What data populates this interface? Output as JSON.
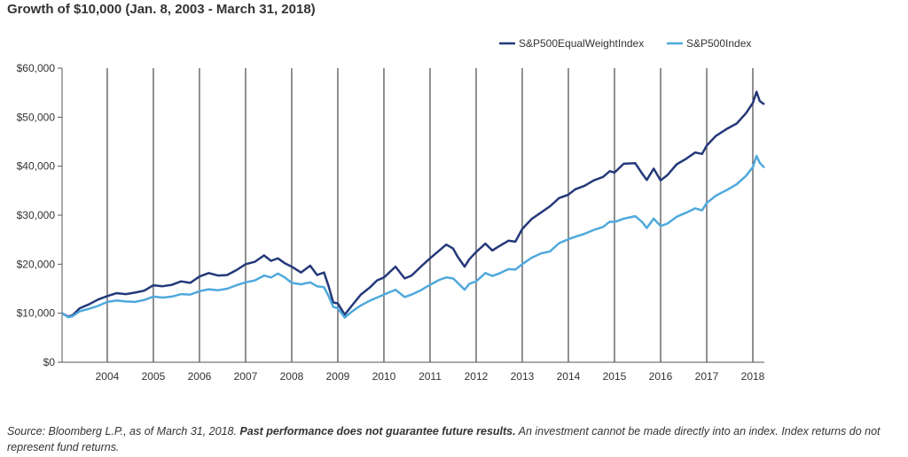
{
  "title": "Growth of $10,000 (Jan. 8, 2003 - March 31, 2018)",
  "footnote": {
    "part1": "Source: Bloomberg L.P., as of March 31, 2018. ",
    "bold": "Past performance does not guarantee future results.",
    "part2": " An investment cannot be made directly into an index. Index returns do not represent fund returns."
  },
  "chart_data": {
    "type": "line",
    "title": "Growth of $10,000 (Jan. 8, 2003 - March 31, 2018)",
    "xlabel": "",
    "ylabel": "",
    "xlim": [
      2003.02,
      2018.25
    ],
    "ylim": [
      0,
      60000
    ],
    "x_ticks": [
      2004,
      2005,
      2006,
      2007,
      2008,
      2009,
      2010,
      2011,
      2012,
      2013,
      2014,
      2015,
      2016,
      2017,
      2018
    ],
    "x_tick_labels": [
      "2004",
      "2005",
      "2006",
      "2007",
      "2008",
      "2009",
      "2010",
      "2011",
      "2012",
      "2013",
      "2014",
      "2015",
      "2016",
      "2017",
      "2018"
    ],
    "y_ticks": [
      0,
      10000,
      20000,
      30000,
      40000,
      50000,
      60000
    ],
    "y_tick_labels": [
      "$0",
      "$10,000",
      "$20,000",
      "$30,000",
      "$40,000",
      "$50,000",
      "$60,000"
    ],
    "vertical_grid": true,
    "legend_position": "top-right",
    "series": [
      {
        "name": "S&P500EqualWeightIndex",
        "color": "#24397a",
        "points": [
          [
            2003.02,
            10000
          ],
          [
            2003.15,
            9300
          ],
          [
            2003.25,
            9600
          ],
          [
            2003.4,
            11000
          ],
          [
            2003.6,
            11800
          ],
          [
            2003.8,
            12800
          ],
          [
            2004.0,
            13500
          ],
          [
            2004.2,
            14100
          ],
          [
            2004.4,
            13900
          ],
          [
            2004.6,
            14200
          ],
          [
            2004.8,
            14600
          ],
          [
            2005.0,
            15700
          ],
          [
            2005.2,
            15500
          ],
          [
            2005.4,
            15800
          ],
          [
            2005.6,
            16500
          ],
          [
            2005.8,
            16200
          ],
          [
            2006.0,
            17500
          ],
          [
            2006.2,
            18200
          ],
          [
            2006.4,
            17700
          ],
          [
            2006.6,
            17800
          ],
          [
            2006.8,
            18800
          ],
          [
            2007.0,
            20000
          ],
          [
            2007.2,
            20500
          ],
          [
            2007.4,
            21800
          ],
          [
            2007.55,
            20700
          ],
          [
            2007.7,
            21200
          ],
          [
            2007.85,
            20200
          ],
          [
            2008.0,
            19500
          ],
          [
            2008.2,
            18300
          ],
          [
            2008.4,
            19700
          ],
          [
            2008.55,
            17800
          ],
          [
            2008.7,
            18300
          ],
          [
            2008.8,
            15500
          ],
          [
            2008.9,
            12200
          ],
          [
            2009.0,
            12000
          ],
          [
            2009.15,
            9700
          ],
          [
            2009.3,
            11500
          ],
          [
            2009.5,
            13800
          ],
          [
            2009.7,
            15300
          ],
          [
            2009.85,
            16700
          ],
          [
            2010.0,
            17300
          ],
          [
            2010.25,
            19500
          ],
          [
            2010.45,
            17100
          ],
          [
            2010.6,
            17700
          ],
          [
            2010.8,
            19500
          ],
          [
            2011.0,
            21200
          ],
          [
            2011.2,
            22800
          ],
          [
            2011.35,
            24000
          ],
          [
            2011.5,
            23200
          ],
          [
            2011.6,
            21500
          ],
          [
            2011.75,
            19500
          ],
          [
            2011.85,
            21000
          ],
          [
            2012.0,
            22500
          ],
          [
            2012.2,
            24200
          ],
          [
            2012.35,
            22800
          ],
          [
            2012.5,
            23700
          ],
          [
            2012.7,
            24800
          ],
          [
            2012.85,
            24600
          ],
          [
            2013.0,
            27200
          ],
          [
            2013.2,
            29200
          ],
          [
            2013.4,
            30500
          ],
          [
            2013.6,
            31800
          ],
          [
            2013.8,
            33500
          ],
          [
            2014.0,
            34200
          ],
          [
            2014.15,
            35300
          ],
          [
            2014.35,
            36000
          ],
          [
            2014.55,
            37100
          ],
          [
            2014.75,
            37800
          ],
          [
            2014.9,
            39000
          ],
          [
            2015.0,
            38700
          ],
          [
            2015.2,
            40500
          ],
          [
            2015.45,
            40600
          ],
          [
            2015.6,
            38500
          ],
          [
            2015.7,
            37200
          ],
          [
            2015.85,
            39500
          ],
          [
            2016.0,
            37100
          ],
          [
            2016.15,
            38200
          ],
          [
            2016.35,
            40400
          ],
          [
            2016.55,
            41500
          ],
          [
            2016.75,
            42800
          ],
          [
            2016.9,
            42500
          ],
          [
            2017.0,
            44200
          ],
          [
            2017.2,
            46200
          ],
          [
            2017.45,
            47700
          ],
          [
            2017.65,
            48700
          ],
          [
            2017.85,
            50800
          ],
          [
            2018.0,
            52900
          ],
          [
            2018.08,
            55200
          ],
          [
            2018.15,
            53300
          ],
          [
            2018.25,
            52600
          ]
        ]
      },
      {
        "name": "S&P500Index",
        "color": "#4fa9dc",
        "points": [
          [
            2003.02,
            10000
          ],
          [
            2003.15,
            9200
          ],
          [
            2003.25,
            9400
          ],
          [
            2003.4,
            10400
          ],
          [
            2003.6,
            10900
          ],
          [
            2003.8,
            11500
          ],
          [
            2004.0,
            12300
          ],
          [
            2004.2,
            12600
          ],
          [
            2004.4,
            12400
          ],
          [
            2004.6,
            12300
          ],
          [
            2004.8,
            12700
          ],
          [
            2005.0,
            13400
          ],
          [
            2005.2,
            13200
          ],
          [
            2005.4,
            13400
          ],
          [
            2005.6,
            13900
          ],
          [
            2005.8,
            13800
          ],
          [
            2006.0,
            14500
          ],
          [
            2006.2,
            14900
          ],
          [
            2006.4,
            14700
          ],
          [
            2006.6,
            15000
          ],
          [
            2006.8,
            15700
          ],
          [
            2007.0,
            16300
          ],
          [
            2007.2,
            16700
          ],
          [
            2007.4,
            17700
          ],
          [
            2007.55,
            17300
          ],
          [
            2007.7,
            18100
          ],
          [
            2007.85,
            17300
          ],
          [
            2008.0,
            16200
          ],
          [
            2008.2,
            15900
          ],
          [
            2008.4,
            16300
          ],
          [
            2008.55,
            15500
          ],
          [
            2008.7,
            15300
          ],
          [
            2008.8,
            13500
          ],
          [
            2008.9,
            11300
          ],
          [
            2009.0,
            11000
          ],
          [
            2009.15,
            9100
          ],
          [
            2009.3,
            10300
          ],
          [
            2009.5,
            11600
          ],
          [
            2009.7,
            12600
          ],
          [
            2009.85,
            13200
          ],
          [
            2010.0,
            13800
          ],
          [
            2010.25,
            14800
          ],
          [
            2010.45,
            13300
          ],
          [
            2010.6,
            13800
          ],
          [
            2010.8,
            14700
          ],
          [
            2011.0,
            15800
          ],
          [
            2011.2,
            16800
          ],
          [
            2011.35,
            17300
          ],
          [
            2011.5,
            17100
          ],
          [
            2011.6,
            16200
          ],
          [
            2011.75,
            14800
          ],
          [
            2011.85,
            16000
          ],
          [
            2012.0,
            16500
          ],
          [
            2012.2,
            18200
          ],
          [
            2012.35,
            17600
          ],
          [
            2012.5,
            18100
          ],
          [
            2012.7,
            19000
          ],
          [
            2012.85,
            18900
          ],
          [
            2013.0,
            20000
          ],
          [
            2013.2,
            21300
          ],
          [
            2013.4,
            22200
          ],
          [
            2013.6,
            22600
          ],
          [
            2013.8,
            24300
          ],
          [
            2014.0,
            25100
          ],
          [
            2014.15,
            25600
          ],
          [
            2014.35,
            26200
          ],
          [
            2014.55,
            27000
          ],
          [
            2014.75,
            27600
          ],
          [
            2014.9,
            28700
          ],
          [
            2015.0,
            28600
          ],
          [
            2015.2,
            29300
          ],
          [
            2015.45,
            29800
          ],
          [
            2015.6,
            28600
          ],
          [
            2015.7,
            27400
          ],
          [
            2015.85,
            29300
          ],
          [
            2016.0,
            27800
          ],
          [
            2016.15,
            28300
          ],
          [
            2016.35,
            29700
          ],
          [
            2016.55,
            30500
          ],
          [
            2016.75,
            31400
          ],
          [
            2016.9,
            31000
          ],
          [
            2017.0,
            32500
          ],
          [
            2017.2,
            34000
          ],
          [
            2017.45,
            35200
          ],
          [
            2017.65,
            36300
          ],
          [
            2017.85,
            38000
          ],
          [
            2018.0,
            39800
          ],
          [
            2018.08,
            42100
          ],
          [
            2018.15,
            40700
          ],
          [
            2018.25,
            39700
          ]
        ]
      }
    ]
  }
}
